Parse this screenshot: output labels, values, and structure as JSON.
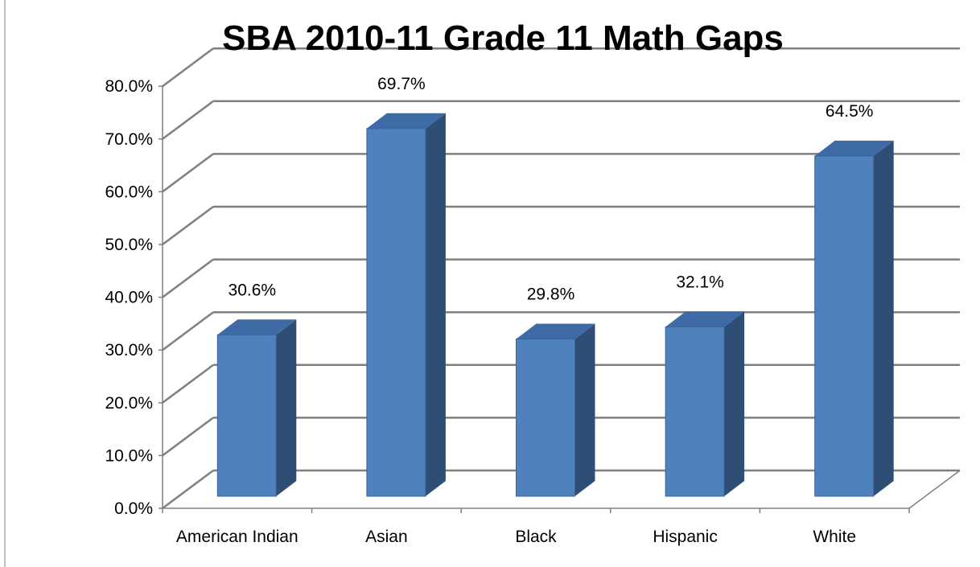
{
  "chart_data": {
    "type": "bar",
    "title": "SBA 2010-11 Grade 11 Math Gaps",
    "xlabel": "",
    "ylabel": "",
    "categories": [
      "American Indian",
      "Asian",
      "Black",
      "Hispanic",
      "White"
    ],
    "values": [
      30.6,
      69.7,
      29.8,
      32.1,
      64.5
    ],
    "data_labels": [
      "30.6%",
      "69.7%",
      "29.8%",
      "32.1%",
      "64.5%"
    ],
    "y_ticks": [
      "0.0%",
      "10.0%",
      "20.0%",
      "30.0%",
      "40.0%",
      "50.0%",
      "60.0%",
      "70.0%",
      "80.0%"
    ],
    "ylim": [
      0,
      80
    ],
    "grid": true,
    "legend": "none",
    "style": "3d-column",
    "colors": {
      "bar_front": "#4F81BD",
      "bar_side": "#2F4E76",
      "bar_top": "#3E6BA6",
      "bar_edge": "#3A6398",
      "grid": "#7F7F7F",
      "axis": "#7F7F7F",
      "frame": "#7F7F7F"
    }
  }
}
